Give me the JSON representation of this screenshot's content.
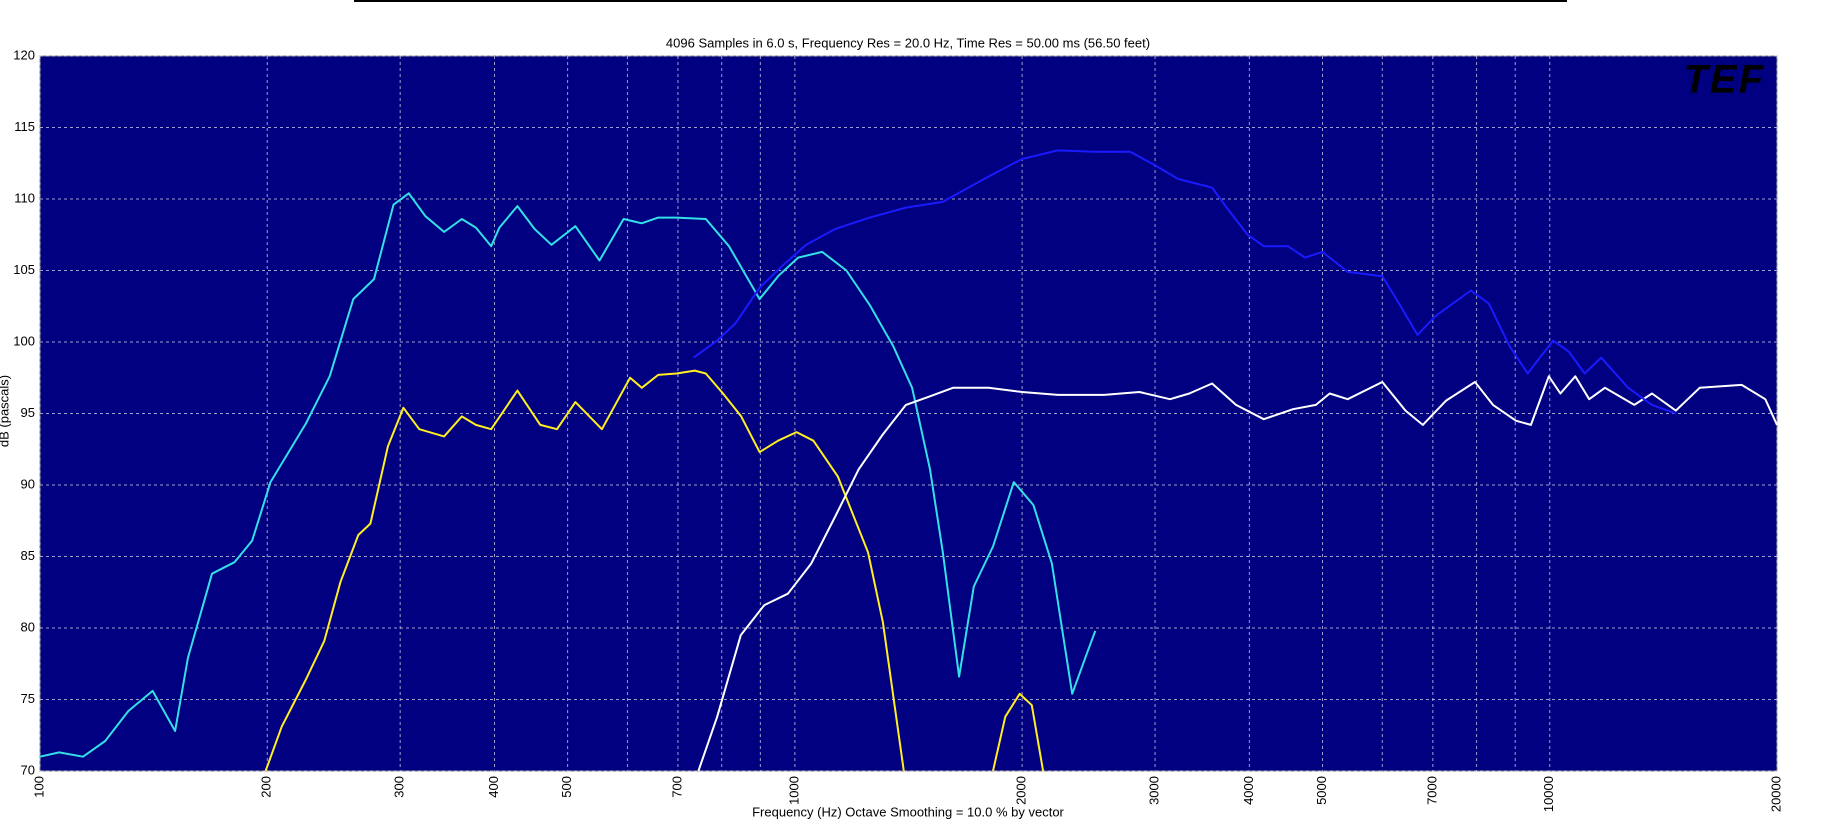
{
  "chart_data": {
    "type": "line",
    "title": "4096 Samples in 6.0 s, Frequency Res = 20.0 Hz, Time Res = 50.00 ms (56.50 feet)",
    "x_label": "Frequency (Hz) Octave Smoothing = 10.0 % by vector",
    "y_label": "dB (pascals)",
    "logo": "TEF",
    "x_scale": "log",
    "grid": true,
    "background": "#000080",
    "xlim": [
      100,
      20000
    ],
    "ylim": [
      70,
      120
    ],
    "xticks": [
      100,
      200,
      300,
      400,
      500,
      700,
      1000,
      2000,
      3000,
      4000,
      5000,
      7000,
      10000,
      20000
    ],
    "minor_xticks": [
      600,
      800,
      900,
      6000,
      8000,
      9000
    ],
    "yticks": [
      70,
      75,
      80,
      85,
      90,
      95,
      100,
      105,
      110,
      115,
      120
    ],
    "series": [
      {
        "color": "#33e0e8",
        "x": [
          100,
          106,
          114,
          122,
          131,
          141,
          151,
          157,
          169,
          181,
          191,
          202,
          225,
          242,
          260,
          277,
          294,
          308,
          324,
          343,
          362,
          378,
          396,
          406,
          429,
          452,
          476,
          512,
          551,
          593,
          627,
          659,
          697,
          762,
          818,
          898,
          950,
          1010,
          1087,
          1170,
          1256,
          1350,
          1430,
          1510,
          1570,
          1650,
          1726,
          1830,
          1950,
          2070,
          2190,
          2330,
          2440,
          2500
        ],
        "values": [
          71.0,
          71.3,
          71.0,
          72.1,
          74.2,
          75.6,
          72.8,
          77.9,
          83.8,
          84.6,
          86.1,
          90.2,
          94.3,
          97.6,
          103.0,
          104.4,
          109.6,
          110.4,
          108.8,
          107.7,
          108.6,
          108.0,
          106.7,
          108.0,
          109.5,
          107.9,
          106.8,
          108.1,
          105.7,
          108.6,
          108.3,
          108.7,
          108.7,
          108.6,
          106.7,
          103.0,
          104.6,
          105.9,
          106.3,
          105.0,
          102.6,
          99.7,
          96.8,
          91.1,
          85.3,
          76.6,
          82.9,
          85.7,
          90.2,
          88.6,
          84.5,
          75.4,
          78.3,
          79.8
        ]
      },
      {
        "color": "#ffee22",
        "x": [
          199,
          209,
          225,
          238,
          250,
          264,
          274,
          289,
          303,
          318,
          343,
          362,
          378,
          396,
          429,
          460,
          484,
          512,
          555,
          605,
          627,
          659,
          697,
          737,
          762,
          803,
          849,
          898,
          950,
          1005,
          1058,
          1140,
          1250,
          1308,
          1394,
          1600,
          1830,
          1900,
          1985,
          2060,
          2132
        ],
        "values": [
          70.0,
          73.1,
          76.4,
          79.1,
          83.2,
          86.5,
          87.3,
          92.7,
          95.4,
          93.9,
          93.4,
          94.8,
          94.2,
          93.9,
          96.6,
          94.2,
          93.9,
          95.8,
          93.9,
          97.5,
          96.8,
          97.7,
          97.8,
          98.0,
          97.8,
          96.4,
          94.8,
          92.3,
          93.1,
          93.7,
          93.1,
          90.6,
          85.3,
          80.4,
          70.0,
          null,
          70.0,
          73.8,
          75.4,
          74.6,
          70.0
        ]
      },
      {
        "color": "#ffffff",
        "x": [
          745,
          789,
          848,
          911,
          979,
          1051,
          1131,
          1215,
          1306,
          1403,
          1510,
          1620,
          1805,
          2000,
          2230,
          2570,
          2860,
          3140,
          3330,
          3570,
          3840,
          4180,
          4570,
          4900,
          5110,
          5400,
          6000,
          6440,
          6790,
          7290,
          7960,
          8410,
          9020,
          9440,
          9970,
          10330,
          10810,
          11280,
          11830,
          12940,
          13660,
          14690,
          15800,
          17960,
          19300,
          20000
        ],
        "values": [
          70.0,
          73.8,
          79.5,
          81.6,
          82.4,
          84.5,
          87.8,
          91.1,
          93.5,
          95.6,
          96.2,
          96.8,
          96.8,
          96.5,
          96.3,
          96.3,
          96.5,
          96.0,
          96.4,
          97.1,
          95.6,
          94.6,
          95.3,
          95.6,
          96.4,
          96.0,
          97.2,
          95.2,
          94.2,
          95.9,
          97.2,
          95.6,
          94.5,
          94.2,
          97.6,
          96.4,
          97.6,
          96.0,
          96.8,
          95.6,
          96.4,
          95.2,
          96.8,
          97.0,
          96.0,
          94.2
        ]
      },
      {
        "color": "#1a1aff",
        "x": [
          734,
          789,
          834,
          898,
          966,
          1035,
          1131,
          1256,
          1403,
          1570,
          1660,
          1810,
          2000,
          2230,
          2490,
          2780,
          2990,
          3220,
          3570,
          3770,
          3980,
          4180,
          4500,
          4740,
          5000,
          5400,
          6000,
          6330,
          6680,
          7050,
          7860,
          8300,
          8850,
          9350,
          9700,
          10110,
          10610,
          11120,
          11700,
          12700,
          13660,
          14690
        ],
        "values": [
          98.9,
          100.1,
          101.3,
          103.8,
          105.4,
          106.8,
          107.9,
          108.7,
          109.4,
          109.8,
          110.5,
          111.6,
          112.8,
          113.4,
          113.3,
          113.3,
          112.4,
          111.4,
          110.8,
          109.1,
          107.5,
          106.7,
          106.7,
          105.9,
          106.3,
          104.9,
          104.6,
          102.6,
          100.5,
          101.8,
          103.6,
          102.7,
          99.7,
          97.8,
          98.9,
          100.1,
          99.3,
          97.8,
          98.9,
          96.8,
          95.6,
          95.0
        ]
      }
    ]
  }
}
